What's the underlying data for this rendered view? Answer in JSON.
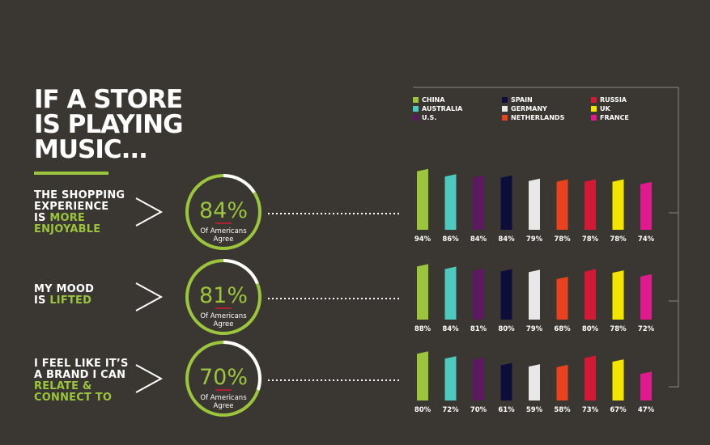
{
  "title_lines": [
    "IF A STORE",
    "IS PLAYING",
    "MUSIC..."
  ],
  "rows": [
    {
      "label_lines": [
        [
          "THE SHOPPING",
          ""
        ],
        [
          "EXPERIENCE",
          ""
        ],
        [
          "IS ",
          "MORE"
        ],
        [
          "",
          "ENJOYABLE"
        ]
      ],
      "pct_text": "84%",
      "pct": 84,
      "sub1": "Of Americans",
      "sub2": "Agree"
    },
    {
      "label_lines": [
        [
          "MY MOOD",
          ""
        ],
        [
          "IS ",
          "LIFTED"
        ]
      ],
      "pct_text": "81%",
      "pct": 81,
      "sub1": "Of Americans",
      "sub2": "Agree"
    },
    {
      "label_lines": [
        [
          "I FEEL LIKE IT’S",
          ""
        ],
        [
          "A BRAND I CAN",
          ""
        ],
        [
          "",
          "RELATE &"
        ],
        [
          "",
          "CONNECT TO"
        ]
      ],
      "pct_text": "70%",
      "pct": 70,
      "sub1": "Of Americans",
      "sub2": "Agree"
    }
  ],
  "colors": {
    "background": "#3a3631",
    "accent": "#9bc53d",
    "ring_track": "#ffffff"
  },
  "chart_data": {
    "type": "bar",
    "categories": [
      "CHINA",
      "AUSTRALIA",
      "U.S.",
      "SPAIN",
      "GERMANY",
      "NETHERLANDS",
      "RUSSIA",
      "UK",
      "FRANCE"
    ],
    "colors": [
      "#9bc53d",
      "#4ec9be",
      "#5b1a5e",
      "#0d0d3a",
      "#e8e8e8",
      "#e8431e",
      "#d21a35",
      "#f2e500",
      "#e01a8c"
    ],
    "legend_order": [
      "CHINA",
      "SPAIN",
      "RUSSIA",
      "AUSTRALIA",
      "GERMANY",
      "UK",
      "U.S.",
      "NETHERLANDS",
      "FRANCE"
    ],
    "series": [
      {
        "values": [
          94,
          86,
          84,
          84,
          79,
          78,
          78,
          78,
          74
        ],
        "labels": [
          "94%",
          "86%",
          "84%",
          "84%",
          "79%",
          "78%",
          "78%",
          "78%",
          "74%"
        ]
      },
      {
        "values": [
          88,
          84,
          81,
          80,
          79,
          68,
          80,
          78,
          72
        ],
        "labels": [
          "88%",
          "84%",
          "81%",
          "80%",
          "79%",
          "68%",
          "80%",
          "78%",
          "72%"
        ]
      },
      {
        "values": [
          80,
          72,
          70,
          61,
          59,
          58,
          73,
          67,
          47
        ],
        "labels": [
          "80%",
          "72%",
          "70%",
          "61%",
          "59%",
          "58%",
          "73%",
          "67%",
          "47%"
        ]
      }
    ]
  }
}
